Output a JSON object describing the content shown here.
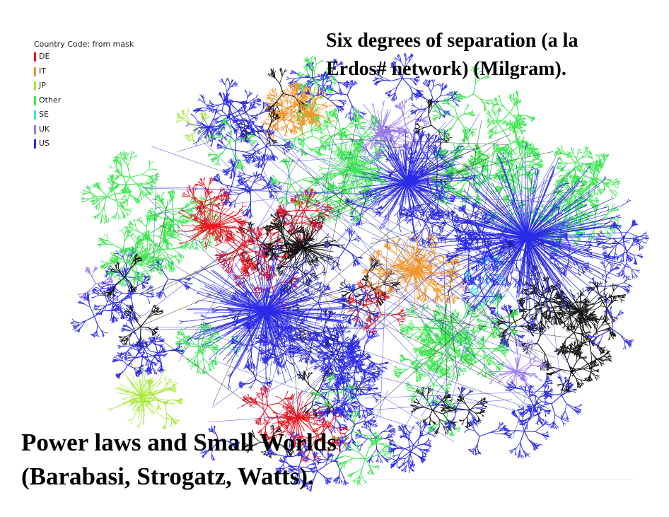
{
  "legend": {
    "title": "Country Code: from mask",
    "items": [
      {
        "label": "DE",
        "color": "#e8141e"
      },
      {
        "label": "IT",
        "color": "#f0962a"
      },
      {
        "label": "JP",
        "color": "#a8e83a"
      },
      {
        "label": "Other",
        "color": "#3ce650"
      },
      {
        "label": "SE",
        "color": "#3ce8d2"
      },
      {
        "label": "UK",
        "color": "#9a78ee"
      },
      {
        "label": "US",
        "color": "#2a2ae8"
      }
    ]
  },
  "annotations": {
    "top_line1": "Six degrees of separation (a la",
    "top_line2": "Erdos# network) (Milgram).",
    "bottom_line1": "Power laws and Small Worlds",
    "bottom_line2": "(Barabasi, Strogatz, Watts)."
  },
  "network_colors": {
    "DE": "#e8141e",
    "IT": "#f0962a",
    "JP": "#a8e83a",
    "Other": "#3ce650",
    "SE": "#3ce8d2",
    "UK": "#9a78ee",
    "US": "#2a2ae8",
    "unknown": "#111111"
  }
}
